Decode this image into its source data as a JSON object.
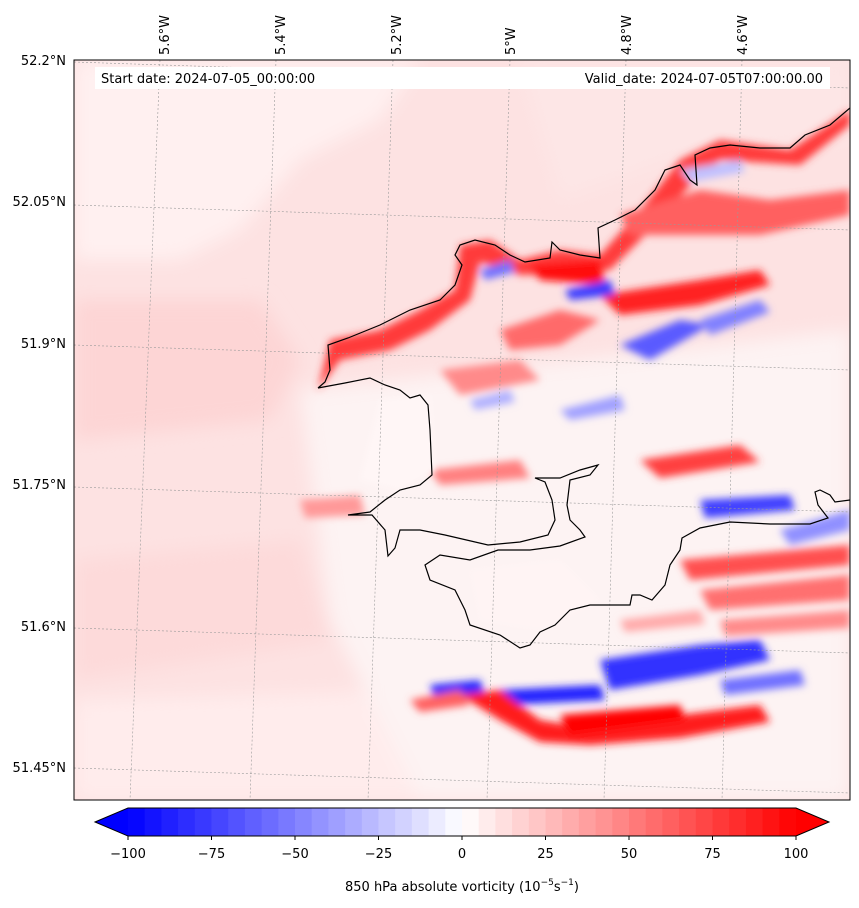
{
  "map": {
    "start_date": "Start date: 2024-07-05_00:00:00",
    "valid_date": "Valid_date: 2024-07-05T07:00:00.00",
    "lon_labels": [
      "5.6°W",
      "5.4°W",
      "5.2°W",
      "5°W",
      "4.8°W",
      "4.6°W"
    ],
    "lat_labels": [
      "52.2°N",
      "52.05°N",
      "51.9°N",
      "51.75°N",
      "51.6°N",
      "51.45°N"
    ],
    "coastline_color": "#000000",
    "gridline_color": "#9a9a9a"
  },
  "colorbar": {
    "ticks": [
      "−100",
      "−75",
      "−50",
      "−25",
      "0",
      "25",
      "50",
      "75",
      "100"
    ],
    "label": "850 hPa absolute vorticity (10",
    "label_exp1": "−5",
    "label_mid": "s",
    "label_exp2": "−1",
    "label_close": ")",
    "min": -100,
    "max": 100,
    "levels": 40,
    "neg_color": "#0000ff",
    "mid_color": "#ffffff",
    "pos_color": "#ff0000",
    "extend": "both"
  },
  "chart_data": {
    "type": "heatmap",
    "title": "",
    "xlabel": "",
    "ylabel": "",
    "colorbar_label": "850 hPa absolute vorticity (10^-5 s^-1)",
    "xlim": [
      -5.78,
      -4.47
    ],
    "ylim": [
      51.415,
      52.2
    ],
    "vmin": -100,
    "vmax": 100
  }
}
